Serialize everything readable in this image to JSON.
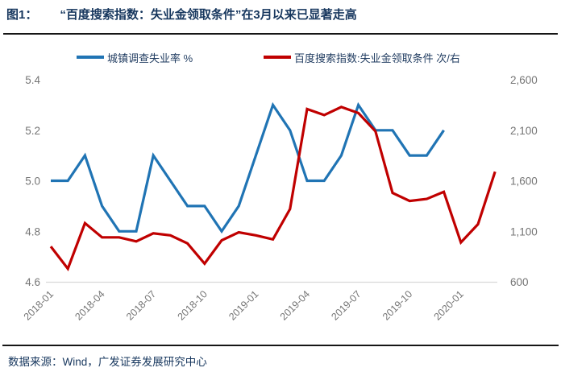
{
  "title": {
    "label": "图1：",
    "text": "“百度搜索指数：失业金领取条件”在3月以来已显著走高"
  },
  "footer": {
    "source": "数据来源：Wind，广发证券发展研究中心"
  },
  "colors": {
    "blue": "#2074B4",
    "red": "#C00000",
    "navy": "#17375E",
    "axis_text": "#757575",
    "axis_line": "#D9D9D9"
  },
  "chart_data": {
    "type": "line",
    "x": [
      "2018-01",
      "2018-02",
      "2018-03",
      "2018-04",
      "2018-05",
      "2018-06",
      "2018-07",
      "2018-08",
      "2018-09",
      "2018-10",
      "2018-11",
      "2018-12",
      "2019-01",
      "2019-02",
      "2019-03",
      "2019-04",
      "2019-05",
      "2019-06",
      "2019-07",
      "2019-08",
      "2019-09",
      "2019-10",
      "2019-11",
      "2019-12",
      "2020-01",
      "2020-02",
      "2020-03"
    ],
    "x_tick_labels": [
      "2018-01",
      "2018-04",
      "2018-07",
      "2018-10",
      "2019-01",
      "2019-04",
      "2019-07",
      "2019-10",
      "2020-01"
    ],
    "series": [
      {
        "name": "城镇调查失业率 %",
        "axis": "left",
        "color": "#2074B4",
        "values": [
          5.0,
          5.0,
          5.1,
          4.9,
          4.8,
          4.8,
          5.1,
          5.0,
          4.9,
          4.9,
          4.8,
          4.9,
          5.1,
          5.3,
          5.2,
          5.0,
          5.0,
          5.1,
          5.3,
          5.2,
          5.2,
          5.1,
          5.1,
          5.2
        ]
      },
      {
        "name": "百度搜索指数:失业金领取条件 次/右",
        "axis": "right",
        "color": "#C00000",
        "values": [
          950,
          730,
          1180,
          1040,
          1040,
          1000,
          1080,
          1060,
          980,
          780,
          1010,
          1090,
          1060,
          1020,
          1320,
          2310,
          2250,
          2330,
          2270,
          2090,
          1480,
          1400,
          1420,
          1490,
          990,
          1170,
          1690
        ]
      }
    ],
    "left_axis": {
      "ticks": [
        "5.4",
        "5.2",
        "5.0",
        "4.8",
        "4.6"
      ],
      "range": [
        4.6,
        5.4
      ]
    },
    "right_axis": {
      "ticks": [
        "2,600",
        "2,100",
        "1,600",
        "1,100",
        "600"
      ],
      "range": [
        600,
        2600
      ]
    },
    "legend_position": "top",
    "grid": false
  }
}
